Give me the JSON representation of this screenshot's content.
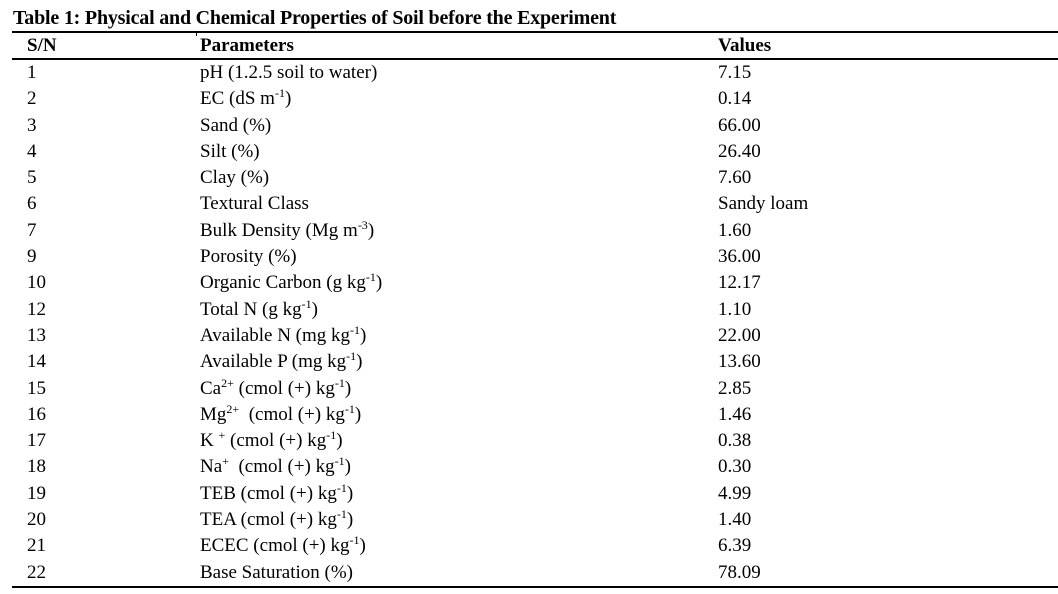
{
  "document": {
    "title": "Table 1: Physical and Chemical Properties of Soil before the Experiment",
    "table": {
      "headers": {
        "sn": "S/N",
        "parameters": "Parameters",
        "values": "Values"
      },
      "rows": [
        {
          "sn": "1",
          "param": "pH (1.2.5 soil to water)",
          "sup": "",
          "suffix": "",
          "value": "7.15"
        },
        {
          "sn": "2",
          "param": "EC (dS m",
          "sup": "-1",
          "suffix": ")",
          "value": "0.14"
        },
        {
          "sn": "3",
          "param": "Sand (%)",
          "sup": "",
          "suffix": "",
          "value": "66.00"
        },
        {
          "sn": "4",
          "param": "Silt (%)",
          "sup": "",
          "suffix": "",
          "value": "26.40"
        },
        {
          "sn": "5",
          "param": "Clay (%)",
          "sup": "",
          "suffix": "",
          "value": "7.60"
        },
        {
          "sn": "6",
          "param": "Textural Class",
          "sup": "",
          "suffix": "",
          "value": "Sandy loam"
        },
        {
          "sn": "7",
          "param": "Bulk Density (Mg m",
          "sup": "-3",
          "suffix": ")",
          "value": "1.60"
        },
        {
          "sn": "9",
          "param": "Porosity (%)",
          "sup": "",
          "suffix": "",
          "value": "36.00"
        },
        {
          "sn": "10",
          "param": "Organic Carbon (g kg",
          "sup": "-1",
          "suffix": ")",
          "value": "12.17"
        },
        {
          "sn": "12",
          "param": "Total N (g kg",
          "sup": "-1",
          "suffix": ")",
          "value": "1.10"
        },
        {
          "sn": "13",
          "param": "Available N (mg kg",
          "sup": "-1",
          "suffix": ")",
          "value": "22.00"
        },
        {
          "sn": "14",
          "param": "Available P (mg kg",
          "sup": "-1",
          "suffix": ")",
          "value": "13.60"
        },
        {
          "sn": "15",
          "param": "Ca",
          "sup": "2+",
          "suffix": " (cmol (+) kg-1)",
          "value": "2.85"
        },
        {
          "sn": "16",
          "param": "Mg",
          "sup": "2+",
          "suffix": "  (cmol (+) kg-1)",
          "value": "1.46"
        },
        {
          "sn": "17",
          "param": "K ",
          "sup": "+",
          "suffix": " (cmol (+) kg-1)",
          "value": "0.38"
        },
        {
          "sn": "18",
          "param": "Na",
          "sup": "+",
          "suffix": "  (cmol (+) kg-1)",
          "value": "0.30"
        },
        {
          "sn": "19",
          "param": "TEB (cmol (+) kg",
          "sup": "-1",
          "suffix": ")",
          "value": "4.99"
        },
        {
          "sn": "20",
          "param": "TEA (cmol (+) kg",
          "sup": "-1",
          "suffix": ")",
          "value": "1.40"
        },
        {
          "sn": "21",
          "param": "ECEC (cmol (+) kg",
          "sup": "-1",
          "suffix": ")",
          "value": "6.39"
        },
        {
          "sn": "22",
          "param": "Base Saturation (%)",
          "sup": "",
          "suffix": "",
          "value": "78.09"
        }
      ]
    }
  }
}
